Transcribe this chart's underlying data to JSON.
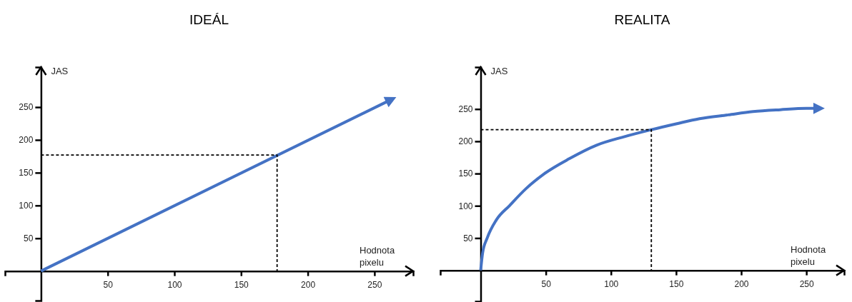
{
  "chart_data": [
    {
      "type": "line",
      "title": "IDEÁL",
      "xlabel": "Hodnota pixelu",
      "ylabel": "JAS",
      "xlim": [
        -27,
        279
      ],
      "ylim": [
        -45,
        311
      ],
      "xticks": [
        50,
        100,
        150,
        200,
        250
      ],
      "yticks": [
        50,
        100,
        150,
        200,
        250
      ],
      "grid": false,
      "series": [
        {
          "color": "#4472c4",
          "x": [
            0,
            261
          ],
          "values": [
            0,
            260
          ]
        },
        {
          "color": "#000000",
          "line_style": "dashed",
          "x": [
            0,
            177,
            177
          ],
          "values": [
            177,
            177,
            0
          ]
        }
      ]
    },
    {
      "type": "line",
      "title": "REALITA",
      "xlabel": "Hodnota pixelu",
      "ylabel": "JAS",
      "xlim": [
        -31,
        279
      ],
      "ylim": [
        -48,
        315
      ],
      "xticks": [
        50,
        100,
        150,
        200,
        250
      ],
      "yticks": [
        50,
        100,
        150,
        200,
        250
      ],
      "grid": false,
      "series": [
        {
          "color": "#4472c4",
          "x": [
            0,
            1.5,
            5,
            12,
            22,
            35,
            49,
            68,
            89,
            110,
            131,
            150,
            168,
            190,
            209,
            230,
            250,
            258
          ],
          "values": [
            0,
            27,
            50,
            78,
            100,
            127,
            150,
            173,
            194,
            207,
            218,
            227,
            235,
            241,
            246,
            249,
            251,
            251
          ]
        },
        {
          "color": "#000000",
          "line_style": "dashed",
          "x": [
            0,
            131,
            131
          ],
          "values": [
            218,
            218,
            0
          ]
        }
      ]
    }
  ]
}
